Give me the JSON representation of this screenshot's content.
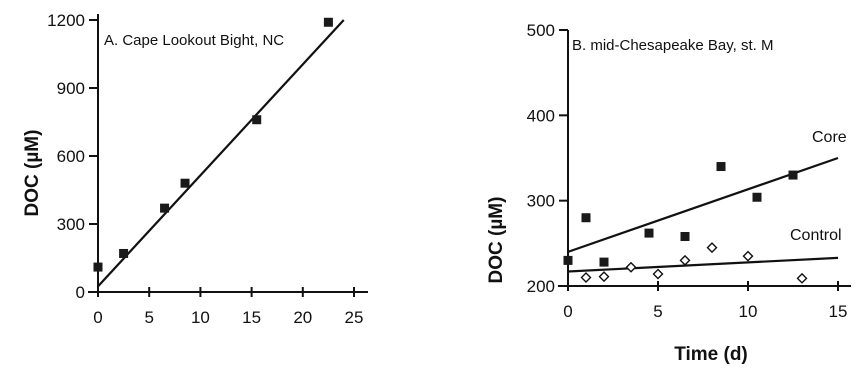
{
  "chart_data": [
    {
      "type": "scatter",
      "title": "A. Cape Lookout Bight, NC",
      "xlabel": "",
      "ylabel": "DOC (µM)",
      "xlim": [
        0,
        25
      ],
      "ylim": [
        0,
        1200
      ],
      "xticks": [
        0,
        5,
        10,
        15,
        20,
        25
      ],
      "yticks": [
        0,
        300,
        600,
        900,
        1200
      ],
      "grid": false,
      "series": [
        {
          "marker": "filled-square",
          "x": [
            0,
            2.5,
            6.5,
            8.5,
            15.5,
            22.5
          ],
          "y": [
            110,
            170,
            370,
            480,
            760,
            1190
          ],
          "fit": {
            "x": [
              0,
              24
            ],
            "y": [
              25,
              1200
            ]
          }
        }
      ]
    },
    {
      "type": "scatter",
      "title": "B. mid-Chesapeake Bay, st. M",
      "xlabel": "Time (d)",
      "ylabel": "DOC (µM)",
      "xlim": [
        0,
        15
      ],
      "ylim": [
        200,
        500
      ],
      "xticks": [
        0,
        5,
        10,
        15
      ],
      "yticks": [
        200,
        300,
        400,
        500
      ],
      "grid": false,
      "series": [
        {
          "name": "Core",
          "marker": "filled-square",
          "x": [
            0,
            1,
            2,
            4.5,
            6.5,
            8.5,
            10.5,
            12.5
          ],
          "y": [
            230,
            280,
            228,
            262,
            258,
            340,
            304,
            330
          ],
          "fit": {
            "x": [
              0,
              15
            ],
            "y": [
              240,
              350
            ]
          }
        },
        {
          "name": "Control",
          "marker": "open-diamond",
          "x": [
            1,
            2,
            3.5,
            5,
            6.5,
            8,
            10,
            13
          ],
          "y": [
            210,
            211,
            222,
            214,
            230,
            245,
            235,
            209
          ],
          "fit": {
            "x": [
              0,
              15
            ],
            "y": [
              217,
              233
            ]
          }
        }
      ]
    }
  ]
}
